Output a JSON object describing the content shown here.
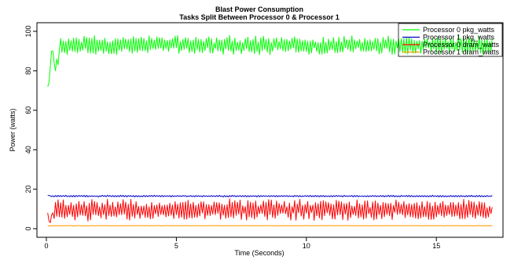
{
  "chart_data": {
    "type": "line",
    "title": "Blast Power Consumption",
    "subtitle": "Tasks Split Between Processor 0 & Processor 1",
    "xlabel": "Time (Seconds)",
    "ylabel": "Power (watts)",
    "xlim": [
      0,
      17.2
    ],
    "ylim": [
      0,
      100
    ],
    "xticks": [
      0,
      5,
      10,
      15
    ],
    "yticks": [
      0,
      20,
      40,
      60,
      80,
      100
    ],
    "grid": false,
    "legend_position": "top-right",
    "sampling": {
      "x_start": 0.05,
      "x_step": 0.05,
      "points": 343
    },
    "series": [
      {
        "name": "Processor 0 pkg_watts",
        "color": "#00ff00",
        "start_values": [
          72,
          74,
          82,
          90,
          90,
          84,
          80,
          86,
          83
        ],
        "base": 93,
        "amplitude": 4.5
      },
      {
        "name": "Processor 1 pkg_watts",
        "color": "#0000cc",
        "start_values": [
          17,
          16.8
        ],
        "base": 16.5,
        "amplitude": 0.4
      },
      {
        "name": "Processor 0 dram_watts",
        "color": "#ff0000",
        "start_values": [
          8,
          4,
          3,
          7,
          8
        ],
        "base": 9.5,
        "amplitude": 5
      },
      {
        "name": "Processor 1 dram_watts",
        "color": "#ff9900",
        "start_values": [
          1.5
        ],
        "base": 1.5,
        "amplitude": 0.15
      }
    ]
  }
}
